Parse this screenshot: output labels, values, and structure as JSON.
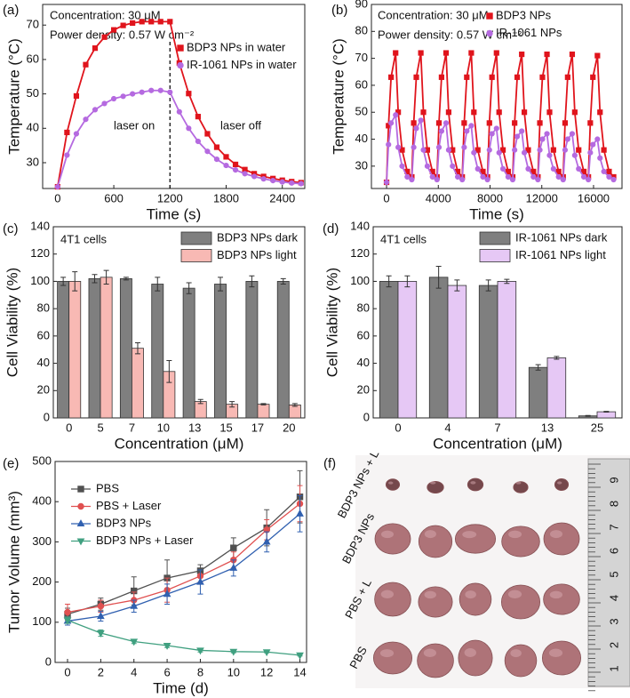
{
  "chart_data": [
    {
      "type": "line",
      "panel_label": "(a)",
      "xlabel": "Time (s)",
      "ylabel": "Temperature (°C)",
      "annotations": [
        "Concentration: 30 μM",
        "Power density: 0.57 W cm⁻²",
        "laser on",
        "laser off"
      ],
      "xlim": [
        -160,
        2640
      ],
      "ylim": [
        22.5,
        76
      ],
      "xticks": [
        0,
        600,
        1200,
        1800,
        2400
      ],
      "yticks": [
        30,
        40,
        50,
        60,
        70
      ],
      "vline": 1200,
      "legend": "upper right",
      "x": [
        0,
        100,
        200,
        300,
        400,
        500,
        600,
        700,
        800,
        900,
        1000,
        1100,
        1200,
        1300,
        1400,
        1500,
        1600,
        1700,
        1800,
        1900,
        2000,
        2100,
        2200,
        2300,
        2400,
        2500,
        2600
      ],
      "series": [
        {
          "name": "BDP3 NPs in water",
          "color": "#e0141c",
          "marker": "square",
          "values": [
            23,
            38.8,
            49.4,
            58.5,
            63.3,
            66.5,
            68.6,
            69.9,
            70.6,
            71,
            71,
            71,
            71,
            59,
            50.1,
            43.4,
            38.4,
            34.5,
            31.7,
            29.5,
            28,
            26.8,
            26,
            25.4,
            24.9,
            24.5,
            24.2
          ]
        },
        {
          "name": "IR-1061 NPs in water",
          "color": "#b56ae0",
          "marker": "circle",
          "values": [
            23,
            32.2,
            38.4,
            42.6,
            45.4,
            47.2,
            48.6,
            49.3,
            50,
            50.5,
            51,
            51,
            50.5,
            44.8,
            40,
            36.2,
            33.3,
            31,
            29.2,
            27.9,
            26.8,
            26,
            25.3,
            24.8,
            24.4,
            24.1,
            23.9
          ]
        }
      ]
    },
    {
      "type": "line",
      "panel_label": "(b)",
      "xlabel": "Time (s)",
      "ylabel": "Temperature (°C)",
      "annotations": [
        "Concentration: 30 μM",
        "Power density: 0.57 W cm⁻²"
      ],
      "xlim": [
        -1170,
        18200
      ],
      "ylim": [
        21.7,
        90
      ],
      "xticks": [
        0,
        4000,
        8000,
        12000,
        16000
      ],
      "yticks": [
        30,
        40,
        50,
        60,
        70,
        80,
        90
      ],
      "legend": "upper right",
      "x": [
        0,
        150,
        350,
        700,
        900,
        1200,
        1600,
        1950,
        2100,
        2300,
        2650,
        2850,
        3150,
        3550,
        3900,
        4050,
        4250,
        4600,
        4800,
        5100,
        5500,
        5850,
        6000,
        6200,
        6550,
        6750,
        7050,
        7450,
        7800,
        7950,
        8150,
        8500,
        8700,
        9000,
        9400,
        9750,
        9900,
        10100,
        10450,
        10650,
        10950,
        11350,
        11700,
        11850,
        12050,
        12400,
        12600,
        12900,
        13300,
        13650,
        13800,
        14000,
        14350,
        14550,
        14850,
        15250,
        15600,
        15750,
        15950,
        16300,
        16500,
        16800,
        17200,
        17550
      ],
      "series": [
        {
          "name": "BDP3 NPs",
          "color": "#e0141c",
          "marker": "square",
          "values": [
            24,
            45,
            63,
            72,
            50,
            36,
            28,
            26,
            46,
            63,
            72,
            50,
            36,
            28,
            26,
            46,
            63,
            72,
            50,
            36,
            28,
            26,
            46,
            63,
            72,
            50,
            36,
            28,
            26,
            46,
            63,
            72,
            50,
            36,
            28,
            26,
            46,
            63,
            71.5,
            50,
            36,
            28,
            26,
            46,
            63,
            71.5,
            50,
            36,
            28,
            26,
            46,
            63,
            71.5,
            50,
            36,
            28,
            26,
            46,
            63,
            71,
            50,
            36,
            28,
            26
          ]
        },
        {
          "name": "IR-1061 NPs",
          "color": "#b56ae0",
          "marker": "circle",
          "values": [
            24,
            38,
            46,
            49,
            37,
            30,
            26,
            25,
            37,
            44,
            47,
            36,
            30,
            26,
            25,
            37,
            43,
            46,
            36,
            30,
            26,
            25,
            37,
            43,
            45,
            35,
            29,
            26,
            25,
            36,
            42,
            44,
            35,
            29,
            26,
            25,
            36,
            41,
            43,
            35,
            29,
            26,
            25,
            36,
            40,
            42,
            34,
            29,
            26,
            25,
            36,
            40,
            42,
            34,
            29,
            26,
            25,
            35,
            38,
            40,
            33,
            28,
            26,
            25
          ]
        }
      ]
    },
    {
      "type": "bar",
      "panel_label": "(c)",
      "xlabel": "Concentration (μM)",
      "ylabel": "Cell Viability (%)",
      "annotations": [
        "4T1 cells"
      ],
      "ylim": [
        0,
        140
      ],
      "yticks": [
        0,
        20,
        40,
        60,
        80,
        100,
        120,
        140
      ],
      "legend": "upper right",
      "categories": [
        "0",
        "5",
        "7",
        "10",
        "13",
        "15",
        "17",
        "20"
      ],
      "series": [
        {
          "name": "BDP3 NPs dark",
          "color": "#7f7f7f",
          "values": [
            100,
            102,
            102,
            98,
            95,
            98,
            100,
            100
          ],
          "errors": [
            3,
            3,
            1,
            5,
            4,
            5,
            4,
            2
          ]
        },
        {
          "name": "BDP3 NPs light",
          "color": "#f8b9b4",
          "values": [
            100,
            103,
            51,
            34,
            12,
            10,
            10,
            9.5
          ],
          "errors": [
            7,
            5,
            4,
            8,
            1.5,
            2,
            0.5,
            1
          ]
        }
      ]
    },
    {
      "type": "bar",
      "panel_label": "(d)",
      "xlabel": "Concentration (μM)",
      "ylabel": "Cell Viability (%)",
      "annotations": [
        "4T1 cells"
      ],
      "ylim": [
        0,
        140
      ],
      "yticks": [
        0,
        20,
        40,
        60,
        80,
        100,
        120,
        140
      ],
      "legend": "upper right",
      "categories": [
        "0",
        "4",
        "7",
        "13",
        "25"
      ],
      "series": [
        {
          "name": "IR-1061 NPs dark",
          "color": "#7f7f7f",
          "values": [
            100,
            103,
            97,
            37,
            1.5
          ],
          "errors": [
            4,
            8,
            4,
            2,
            0.3
          ]
        },
        {
          "name": "IR-1061 NPs light",
          "color": "#e6c8f5",
          "values": [
            100,
            97,
            100,
            44,
            4.5
          ],
          "errors": [
            4,
            4,
            1.5,
            1,
            0.3
          ]
        }
      ]
    },
    {
      "type": "line",
      "panel_label": "(e)",
      "xlabel": "Time (d)",
      "ylabel": "Tumor Volume (mm³)",
      "xlim": [
        -0.75,
        14.4
      ],
      "ylim": [
        0,
        500
      ],
      "xticks": [
        0,
        2,
        4,
        6,
        8,
        10,
        12,
        14
      ],
      "yticks": [
        0,
        100,
        200,
        300,
        400,
        500
      ],
      "legend": "upper left",
      "x": [
        0,
        2,
        4,
        6,
        8,
        10,
        12,
        14
      ],
      "series": [
        {
          "name": "PBS",
          "color": "#505050",
          "marker": "square",
          "values": [
            120,
            145,
            178,
            210,
            228,
            285,
            335,
            412
          ],
          "errors": [
            15,
            15,
            35,
            45,
            15,
            25,
            45,
            65
          ]
        },
        {
          "name": "PBS + Laser",
          "color": "#e05050",
          "marker": "circle",
          "values": [
            125,
            140,
            155,
            180,
            215,
            255,
            330,
            395
          ],
          "errors": [
            20,
            15,
            20,
            30,
            15,
            20,
            25,
            45
          ]
        },
        {
          "name": "BDP3 NPs",
          "color": "#3060b0",
          "marker": "triangle",
          "values": [
            103,
            115,
            140,
            170,
            200,
            235,
            300,
            370
          ],
          "errors": [
            10,
            12,
            15,
            25,
            30,
            20,
            25,
            45
          ]
        },
        {
          "name": "BDP3 NPs + Laser",
          "color": "#40a080",
          "marker": "triangle-down",
          "values": [
            105,
            73,
            52,
            42,
            30,
            27,
            26,
            18
          ],
          "errors": [
            8,
            8,
            5,
            5,
            4,
            3,
            2,
            2
          ]
        }
      ]
    }
  ],
  "photo": {
    "panel_label": "(f)",
    "row_labels": [
      "BDP3 NPs + L",
      "BDP3 NPs",
      "PBS + L",
      "PBS"
    ],
    "ruler_labels": [
      9,
      8,
      7,
      6,
      5,
      4,
      3,
      2,
      1
    ]
  }
}
